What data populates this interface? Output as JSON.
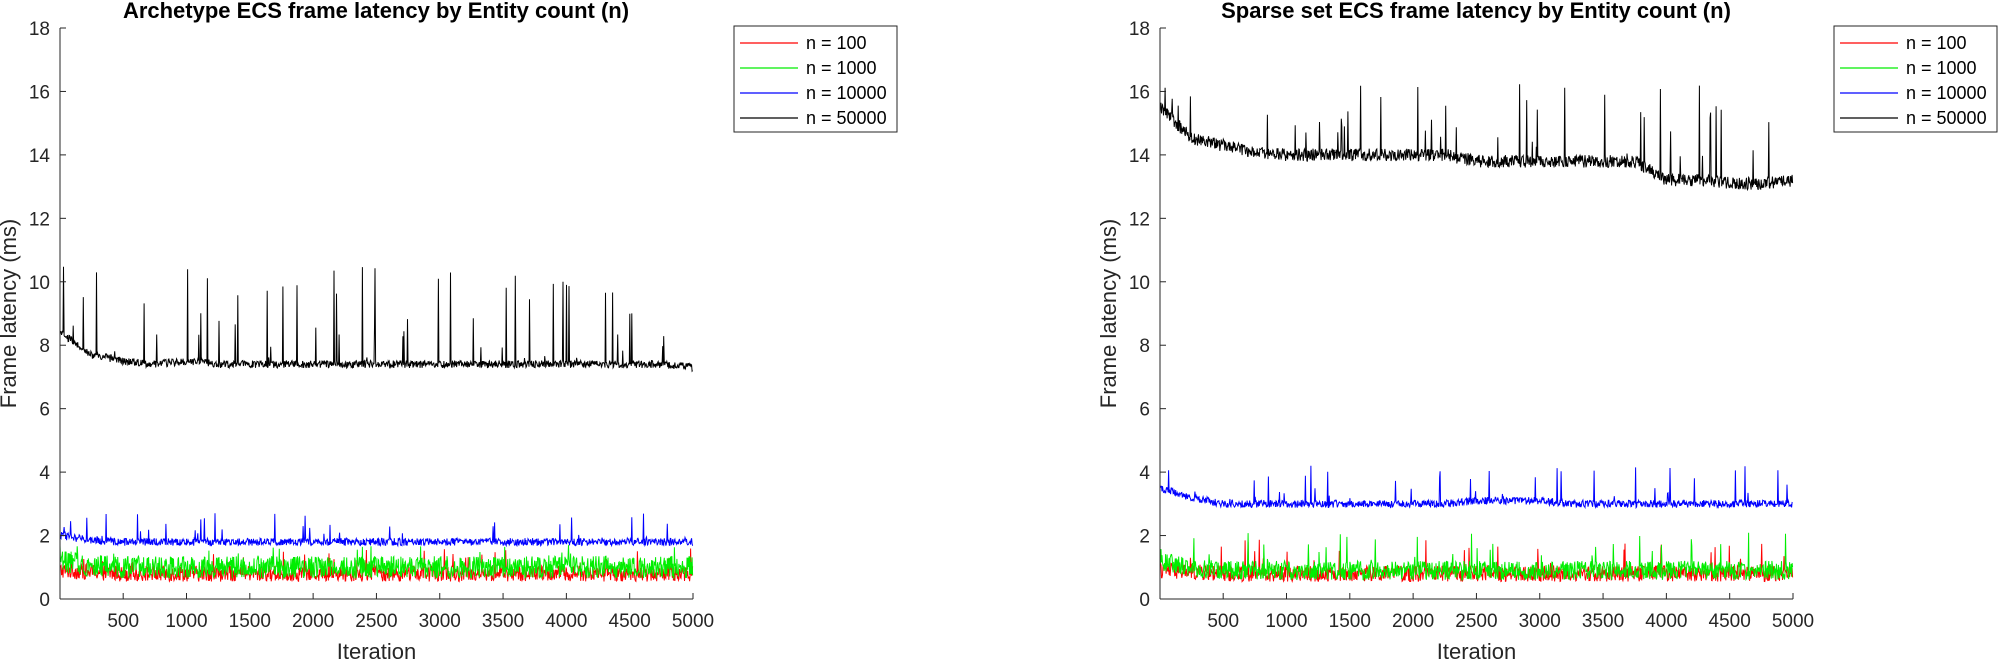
{
  "chart_data": [
    {
      "type": "line",
      "title": "Archetype ECS frame latency by Entity count (n)",
      "xlabel": "Iteration",
      "ylabel": "Frame latency (ms)",
      "xlim": [
        1,
        5000
      ],
      "ylim": [
        0,
        18
      ],
      "xticks": [
        500,
        1000,
        1500,
        2000,
        2500,
        3000,
        3500,
        4000,
        4500,
        5000
      ],
      "yticks": [
        0,
        2,
        4,
        6,
        8,
        10,
        12,
        14,
        16,
        18
      ],
      "legend_position": "top-right",
      "series": [
        {
          "name": "n = 100",
          "color": "#ff0000",
          "x": [
            1,
            250,
            500,
            750,
            1000,
            1250,
            1500,
            1750,
            2000,
            2250,
            2500,
            2750,
            3000,
            3250,
            3500,
            3750,
            4000,
            4250,
            4500,
            4750,
            5000
          ],
          "values": [
            0.9,
            0.85,
            0.8,
            0.8,
            0.8,
            0.8,
            0.8,
            0.8,
            0.8,
            0.8,
            0.8,
            0.8,
            0.8,
            0.8,
            0.8,
            0.8,
            0.8,
            0.8,
            0.8,
            0.8,
            0.8
          ],
          "noise": 0.25,
          "spike_max": 1.6
        },
        {
          "name": "n = 1000",
          "color": "#00ee00",
          "x": [
            1,
            250,
            500,
            750,
            1000,
            1250,
            1500,
            1750,
            2000,
            2250,
            2500,
            2750,
            3000,
            3250,
            3500,
            3750,
            4000,
            4250,
            4500,
            4750,
            5000
          ],
          "values": [
            1.2,
            1.05,
            1.0,
            1.0,
            1.0,
            1.0,
            1.0,
            1.0,
            1.0,
            1.0,
            1.0,
            1.0,
            1.0,
            1.0,
            1.0,
            1.0,
            1.0,
            1.0,
            1.0,
            1.0,
            1.0
          ],
          "noise": 0.35,
          "spike_max": 1.7
        },
        {
          "name": "n = 10000",
          "color": "#0000ff",
          "x": [
            1,
            250,
            500,
            750,
            1000,
            1250,
            1500,
            1750,
            2000,
            2250,
            2500,
            2750,
            3000,
            3250,
            3500,
            3750,
            4000,
            4250,
            4500,
            4750,
            5000
          ],
          "values": [
            2.0,
            1.85,
            1.8,
            1.8,
            1.8,
            1.8,
            1.8,
            1.8,
            1.8,
            1.8,
            1.8,
            1.8,
            1.8,
            1.8,
            1.8,
            1.8,
            1.8,
            1.8,
            1.8,
            1.8,
            1.8
          ],
          "noise": 0.12,
          "spike_max": 2.8
        },
        {
          "name": "n = 50000",
          "color": "#000000",
          "x": [
            1,
            250,
            500,
            750,
            1000,
            1250,
            1500,
            1750,
            2000,
            2250,
            2500,
            2750,
            3000,
            3250,
            3500,
            3750,
            4000,
            4250,
            4500,
            4750,
            5000
          ],
          "values": [
            8.4,
            7.7,
            7.5,
            7.4,
            7.5,
            7.4,
            7.4,
            7.4,
            7.4,
            7.4,
            7.4,
            7.4,
            7.4,
            7.4,
            7.4,
            7.4,
            7.4,
            7.4,
            7.4,
            7.4,
            7.3
          ],
          "noise": 0.12,
          "spike_max": 10.6
        }
      ]
    },
    {
      "type": "line",
      "title": "Sparse set ECS frame latency by Entity count (n)",
      "xlabel": "Iteration",
      "ylabel": "Frame latency (ms)",
      "xlim": [
        1,
        5000
      ],
      "ylim": [
        0,
        18
      ],
      "xticks": [
        500,
        1000,
        1500,
        2000,
        2500,
        3000,
        3500,
        4000,
        4500,
        5000
      ],
      "yticks": [
        0,
        2,
        4,
        6,
        8,
        10,
        12,
        14,
        16,
        18
      ],
      "legend_position": "top-right",
      "series": [
        {
          "name": "n = 100",
          "color": "#ff0000",
          "x": [
            1,
            250,
            500,
            750,
            1000,
            1250,
            1500,
            1750,
            2000,
            2250,
            2500,
            2750,
            3000,
            3250,
            3500,
            3750,
            4000,
            4250,
            4500,
            4750,
            5000
          ],
          "values": [
            0.9,
            0.85,
            0.8,
            0.8,
            0.8,
            0.8,
            0.8,
            0.8,
            0.8,
            0.8,
            0.8,
            0.8,
            0.8,
            0.8,
            0.8,
            0.8,
            0.8,
            0.8,
            0.8,
            0.8,
            0.8
          ],
          "noise": 0.25,
          "spike_max": 2.0
        },
        {
          "name": "n = 1000",
          "color": "#00ee00",
          "x": [
            1,
            250,
            500,
            750,
            1000,
            1250,
            1500,
            1750,
            2000,
            2250,
            2500,
            2750,
            3000,
            3250,
            3500,
            3750,
            4000,
            4250,
            4500,
            4750,
            5000
          ],
          "values": [
            1.2,
            1.0,
            0.9,
            0.9,
            0.9,
            0.9,
            0.9,
            0.9,
            0.9,
            0.9,
            0.9,
            0.9,
            0.9,
            0.9,
            0.9,
            0.9,
            0.9,
            0.9,
            0.9,
            0.9,
            0.9
          ],
          "noise": 0.3,
          "spike_max": 2.1
        },
        {
          "name": "n = 10000",
          "color": "#0000ff",
          "x": [
            1,
            250,
            500,
            750,
            1000,
            1250,
            1500,
            1750,
            2000,
            2250,
            2500,
            2750,
            3000,
            3250,
            3500,
            3750,
            4000,
            4250,
            4500,
            4750,
            5000
          ],
          "values": [
            3.5,
            3.2,
            3.0,
            3.0,
            3.0,
            3.0,
            3.0,
            3.0,
            3.0,
            3.0,
            3.1,
            3.1,
            3.1,
            3.0,
            3.0,
            3.0,
            3.0,
            3.0,
            3.0,
            3.0,
            3.0
          ],
          "noise": 0.12,
          "spike_max": 4.2
        },
        {
          "name": "n = 50000",
          "color": "#000000",
          "x": [
            1,
            250,
            500,
            750,
            1000,
            1250,
            1500,
            1750,
            2000,
            2250,
            2500,
            2750,
            3000,
            3250,
            3500,
            3750,
            4000,
            4250,
            4500,
            4750,
            5000
          ],
          "values": [
            15.5,
            14.5,
            14.3,
            14.1,
            14.0,
            14.0,
            14.0,
            14.0,
            14.0,
            14.0,
            13.8,
            13.8,
            13.8,
            13.8,
            13.8,
            13.8,
            13.2,
            13.2,
            13.1,
            13.1,
            13.2
          ],
          "noise": 0.2,
          "spike_max": 16.3
        }
      ]
    }
  ]
}
